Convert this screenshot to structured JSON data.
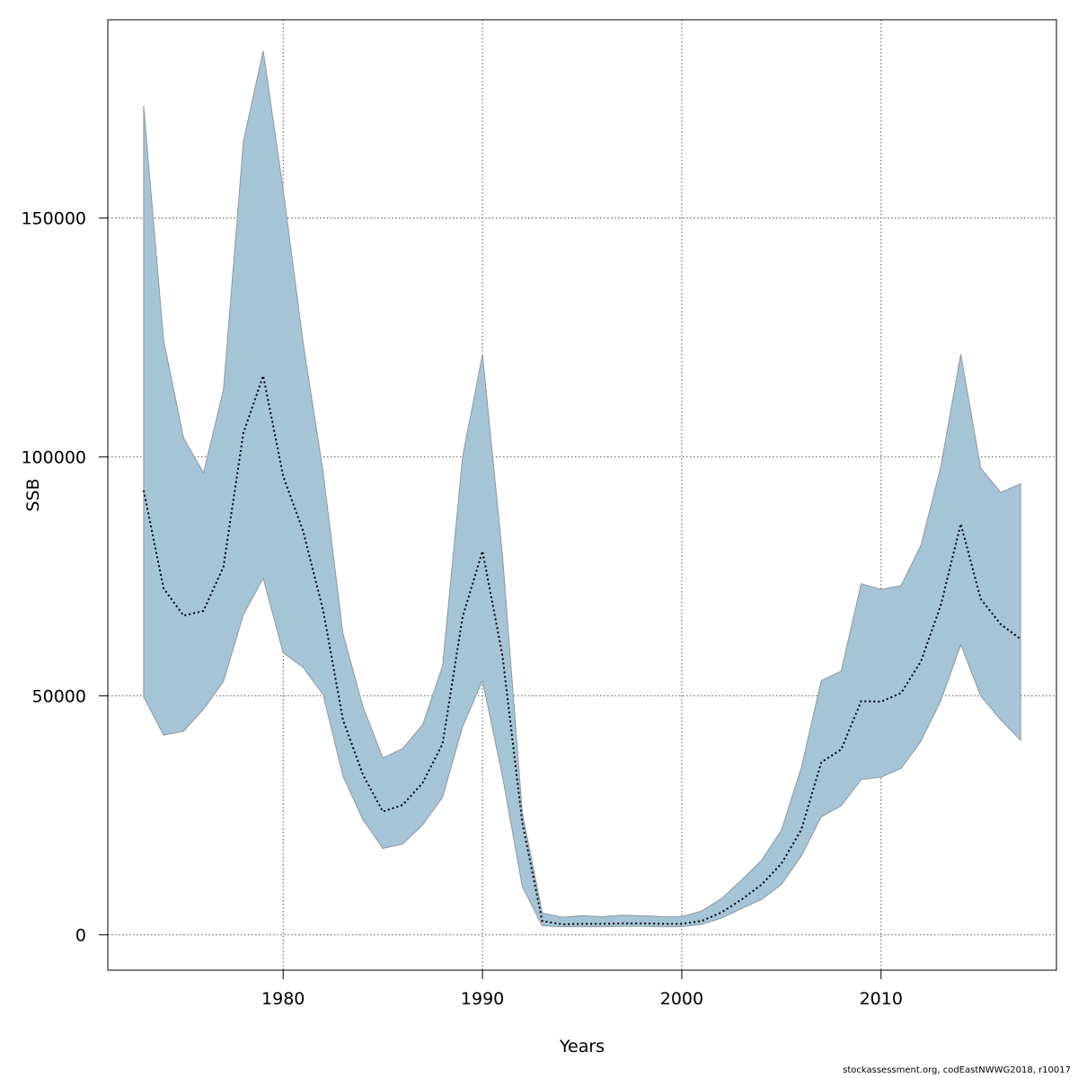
{
  "chart_data": {
    "type": "area",
    "xlabel": "Years",
    "ylabel": "SSB",
    "xlim": [
      1971.2,
      2018.8
    ],
    "ylim": [
      -7400,
      191500
    ],
    "x_ticks": [
      1980,
      1990,
      2000,
      2010
    ],
    "y_ticks": [
      0,
      50000,
      100000,
      150000
    ],
    "grid": true,
    "band_color": "#a5c4d6",
    "band_edge_color": "#8c9aa4",
    "line_color": "#000000",
    "x": [
      1973,
      1974,
      1975,
      1976,
      1977,
      1978,
      1979,
      1980,
      1981,
      1982,
      1983,
      1984,
      1985,
      1986,
      1987,
      1988,
      1989,
      1990,
      1991,
      1992,
      1993,
      1994,
      1995,
      1996,
      1997,
      1998,
      1999,
      2000,
      2001,
      2002,
      2003,
      2004,
      2005,
      2006,
      2007,
      2008,
      2009,
      2010,
      2011,
      2012,
      2013,
      2014,
      2015,
      2016,
      2017
    ],
    "series": [
      {
        "values": [
          93000,
          72500,
          66800,
          67800,
          77000,
          105000,
          117000,
          96000,
          84500,
          68000,
          45000,
          33500,
          25800,
          27200,
          31800,
          40000,
          66500,
          80300,
          58500,
          23500,
          2900,
          2200,
          2300,
          2300,
          2400,
          2400,
          2300,
          2300,
          2900,
          4700,
          7400,
          10500,
          14900,
          22000,
          36100,
          38800,
          48900,
          48800,
          50600,
          57200,
          69000,
          86000,
          70300,
          65000,
          61900
        ]
      }
    ],
    "lower": [
      49800,
      41800,
      42600,
      47200,
      53000,
      67000,
      74600,
      59000,
      56000,
      50300,
      33200,
      24100,
      18100,
      19000,
      23000,
      28800,
      43500,
      53200,
      33200,
      10100,
      1900,
      1700,
      1700,
      1700,
      1800,
      1800,
      1700,
      1700,
      2200,
      3500,
      5500,
      7400,
      10500,
      16500,
      24700,
      27000,
      32500,
      33000,
      34800,
      40500,
      49000,
      60700,
      50000,
      45000,
      40700
    ],
    "upper": [
      173500,
      124500,
      104000,
      96700,
      114000,
      166000,
      185000,
      156000,
      124000,
      97000,
      63000,
      47800,
      37000,
      39000,
      44000,
      56300,
      100000,
      121500,
      79500,
      25600,
      4600,
      3700,
      4000,
      3800,
      4100,
      4000,
      3800,
      3800,
      5000,
      7600,
      11500,
      15600,
      21900,
      35000,
      53200,
      55200,
      73500,
      72300,
      73100,
      81500,
      98000,
      121500,
      97700,
      92600,
      94400
    ],
    "footer": "stockassessment.org, codEastNWWG2018, r10017"
  }
}
